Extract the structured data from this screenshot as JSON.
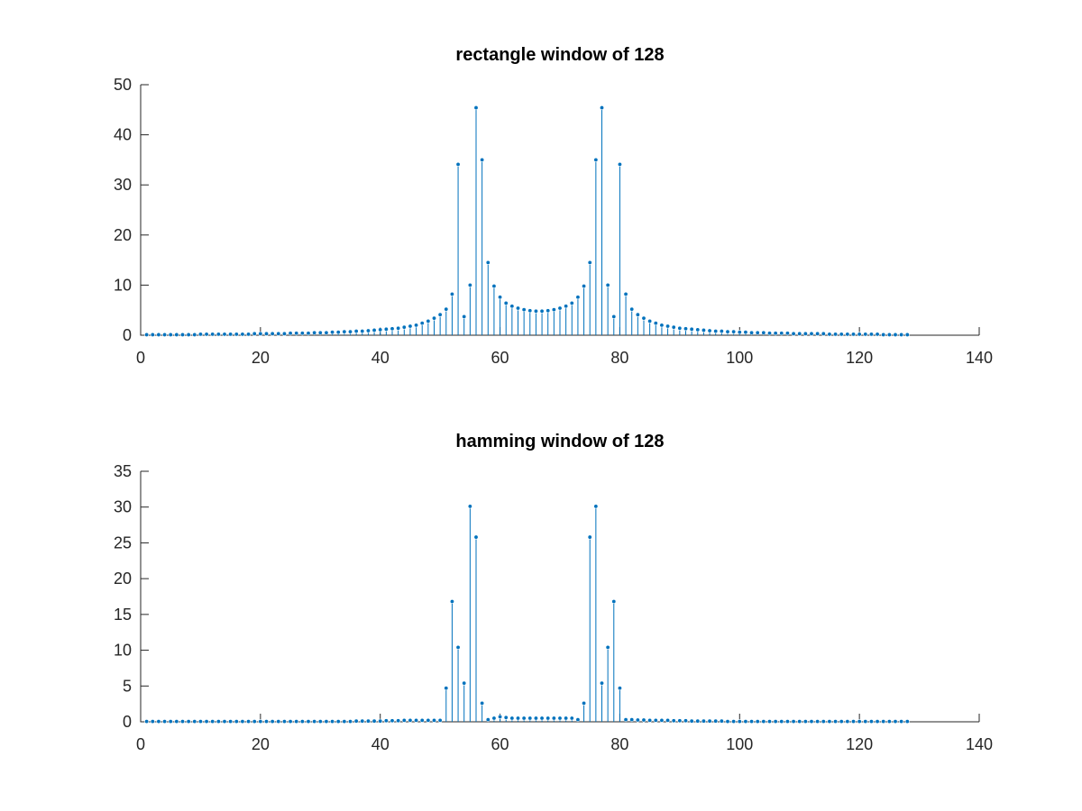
{
  "chart_data": [
    {
      "type": "stem",
      "title": "rectangle window of 128",
      "xlabel": "",
      "ylabel": "",
      "xlim": [
        0,
        140
      ],
      "ylim": [
        0,
        50
      ],
      "xticks": [
        0,
        20,
        40,
        60,
        80,
        100,
        120,
        140
      ],
      "yticks": [
        0,
        10,
        20,
        30,
        40,
        50
      ],
      "color": "#0072bd",
      "x": [
        1,
        2,
        3,
        4,
        5,
        6,
        7,
        8,
        9,
        10,
        11,
        12,
        13,
        14,
        15,
        16,
        17,
        18,
        19,
        20,
        21,
        22,
        23,
        24,
        25,
        26,
        27,
        28,
        29,
        30,
        31,
        32,
        33,
        34,
        35,
        36,
        37,
        38,
        39,
        40,
        41,
        42,
        43,
        44,
        45,
        46,
        47,
        48,
        49,
        50,
        51,
        52,
        53,
        54,
        55,
        56,
        57,
        58,
        59,
        60,
        61,
        62,
        63,
        64,
        65,
        66,
        67,
        68,
        69,
        70,
        71,
        72,
        73,
        74,
        75,
        76,
        77,
        78,
        79,
        80,
        81,
        82,
        83,
        84,
        85,
        86,
        87,
        88,
        89,
        90,
        91,
        92,
        93,
        94,
        95,
        96,
        97,
        98,
        99,
        100,
        101,
        102,
        103,
        104,
        105,
        106,
        107,
        108,
        109,
        110,
        111,
        112,
        113,
        114,
        115,
        116,
        117,
        118,
        119,
        120,
        121,
        122,
        123,
        124,
        125,
        126,
        127,
        128
      ],
      "values": [
        0.1,
        0.1,
        0.1,
        0.1,
        0.1,
        0.1,
        0.1,
        0.1,
        0.1,
        0.2,
        0.2,
        0.2,
        0.2,
        0.2,
        0.2,
        0.2,
        0.2,
        0.2,
        0.3,
        0.3,
        0.3,
        0.3,
        0.3,
        0.3,
        0.4,
        0.4,
        0.4,
        0.4,
        0.5,
        0.5,
        0.5,
        0.6,
        0.6,
        0.7,
        0.7,
        0.8,
        0.8,
        0.9,
        1.0,
        1.1,
        1.2,
        1.3,
        1.4,
        1.6,
        1.8,
        2.0,
        2.4,
        2.8,
        3.4,
        4.1,
        5.2,
        8.2,
        34.1,
        3.7,
        10.0,
        45.4,
        35.0,
        14.5,
        9.8,
        7.6,
        6.4,
        5.8,
        5.4,
        5.1,
        4.9,
        4.8,
        4.8,
        4.9,
        5.1,
        5.4,
        5.8,
        6.4,
        7.6,
        9.8,
        14.5,
        35.0,
        45.4,
        10.0,
        3.7,
        34.1,
        8.2,
        5.2,
        4.1,
        3.4,
        2.8,
        2.4,
        2.0,
        1.8,
        1.6,
        1.4,
        1.3,
        1.2,
        1.1,
        1.0,
        0.9,
        0.8,
        0.8,
        0.7,
        0.7,
        0.6,
        0.6,
        0.5,
        0.5,
        0.5,
        0.4,
        0.4,
        0.4,
        0.4,
        0.3,
        0.3,
        0.3,
        0.3,
        0.3,
        0.3,
        0.2,
        0.2,
        0.2,
        0.2,
        0.2,
        0.2,
        0.2,
        0.2,
        0.2,
        0.1,
        0.1,
        0.1,
        0.1,
        0.1
      ]
    },
    {
      "type": "stem",
      "title": "hamming window of 128",
      "xlabel": "",
      "ylabel": "",
      "xlim": [
        0,
        140
      ],
      "ylim": [
        0,
        35
      ],
      "xticks": [
        0,
        20,
        40,
        60,
        80,
        100,
        120,
        140
      ],
      "yticks": [
        0,
        5,
        10,
        15,
        20,
        25,
        30,
        35
      ],
      "color": "#0072bd",
      "x": [
        1,
        2,
        3,
        4,
        5,
        6,
        7,
        8,
        9,
        10,
        11,
        12,
        13,
        14,
        15,
        16,
        17,
        18,
        19,
        20,
        21,
        22,
        23,
        24,
        25,
        26,
        27,
        28,
        29,
        30,
        31,
        32,
        33,
        34,
        35,
        36,
        37,
        38,
        39,
        40,
        41,
        42,
        43,
        44,
        45,
        46,
        47,
        48,
        49,
        50,
        51,
        52,
        53,
        54,
        55,
        56,
        57,
        58,
        59,
        60,
        61,
        62,
        63,
        64,
        65,
        66,
        67,
        68,
        69,
        70,
        71,
        72,
        73,
        74,
        75,
        76,
        77,
        78,
        79,
        80,
        81,
        82,
        83,
        84,
        85,
        86,
        87,
        88,
        89,
        90,
        91,
        92,
        93,
        94,
        95,
        96,
        97,
        98,
        99,
        100,
        101,
        102,
        103,
        104,
        105,
        106,
        107,
        108,
        109,
        110,
        111,
        112,
        113,
        114,
        115,
        116,
        117,
        118,
        119,
        120,
        121,
        122,
        123,
        124,
        125,
        126,
        127,
        128
      ],
      "values": [
        0.05,
        0.05,
        0.05,
        0.05,
        0.05,
        0.05,
        0.05,
        0.05,
        0.05,
        0.05,
        0.05,
        0.05,
        0.05,
        0.05,
        0.05,
        0.05,
        0.05,
        0.05,
        0.05,
        0.05,
        0.05,
        0.05,
        0.05,
        0.05,
        0.05,
        0.05,
        0.05,
        0.05,
        0.05,
        0.05,
        0.05,
        0.05,
        0.05,
        0.05,
        0.05,
        0.1,
        0.1,
        0.1,
        0.1,
        0.1,
        0.15,
        0.15,
        0.15,
        0.2,
        0.2,
        0.2,
        0.2,
        0.2,
        0.2,
        0.2,
        4.7,
        16.8,
        10.4,
        5.4,
        30.1,
        25.8,
        2.6,
        0.3,
        0.5,
        0.7,
        0.6,
        0.5,
        0.5,
        0.5,
        0.5,
        0.5,
        0.5,
        0.5,
        0.5,
        0.5,
        0.5,
        0.5,
        0.3,
        2.6,
        25.8,
        30.1,
        5.4,
        10.4,
        16.8,
        4.7,
        0.3,
        0.3,
        0.25,
        0.25,
        0.2,
        0.2,
        0.2,
        0.2,
        0.15,
        0.15,
        0.15,
        0.1,
        0.1,
        0.1,
        0.1,
        0.1,
        0.1,
        0.05,
        0.05,
        0.05,
        0.05,
        0.05,
        0.05,
        0.05,
        0.05,
        0.05,
        0.05,
        0.05,
        0.05,
        0.05,
        0.05,
        0.05,
        0.05,
        0.05,
        0.05,
        0.05,
        0.05,
        0.05,
        0.05,
        0.05,
        0.05,
        0.05,
        0.05,
        0.05,
        0.05,
        0.05,
        0.05,
        0.05
      ]
    }
  ]
}
